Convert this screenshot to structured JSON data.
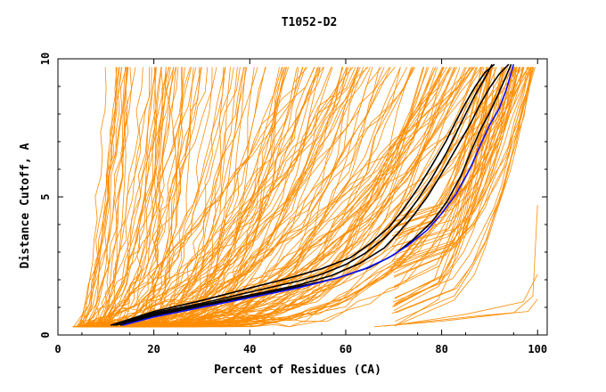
{
  "chart_data": {
    "type": "line",
    "title": "T1052-D2",
    "xlabel": "Percent of Residues (CA)",
    "ylabel": "Distance Cutoff, A",
    "xlim": [
      0,
      102
    ],
    "ylim": [
      0,
      10
    ],
    "x_ticks": [
      0,
      20,
      40,
      60,
      80,
      100
    ],
    "y_ticks": [
      0,
      5,
      10
    ],
    "grid": false,
    "legend": "none",
    "colors": {
      "background_models": "#ff8c00",
      "highlight_models": "#000000",
      "reference_model": "#1010ff"
    },
    "series": [
      {
        "style": "highlight",
        "points": [
          [
            11.5,
            0.35
          ],
          [
            20,
            0.8
          ],
          [
            30,
            1.15
          ],
          [
            40,
            1.55
          ],
          [
            50,
            1.95
          ],
          [
            55,
            2.2
          ],
          [
            60,
            2.55
          ],
          [
            64,
            2.95
          ],
          [
            68,
            3.5
          ],
          [
            72,
            4.2
          ],
          [
            75,
            4.9
          ],
          [
            78,
            5.7
          ],
          [
            81,
            6.6
          ],
          [
            83,
            7.3
          ],
          [
            85,
            8
          ],
          [
            87,
            8.7
          ],
          [
            89,
            9.3
          ],
          [
            90.5,
            9.8
          ]
        ]
      },
      {
        "style": "highlight",
        "points": [
          [
            11,
            0.35
          ],
          [
            20,
            0.85
          ],
          [
            30,
            1.25
          ],
          [
            40,
            1.7
          ],
          [
            48,
            2.05
          ],
          [
            55,
            2.4
          ],
          [
            61,
            2.8
          ],
          [
            65,
            3.3
          ],
          [
            69,
            3.9
          ],
          [
            72,
            4.55
          ],
          [
            75,
            5.3
          ],
          [
            78,
            6.15
          ],
          [
            81,
            7.05
          ],
          [
            83,
            7.75
          ],
          [
            85,
            8.4
          ],
          [
            87,
            9
          ],
          [
            89,
            9.5
          ],
          [
            91,
            9.8
          ]
        ]
      },
      {
        "style": "highlight",
        "points": [
          [
            12,
            0.35
          ],
          [
            20,
            0.75
          ],
          [
            30,
            1.1
          ],
          [
            40,
            1.45
          ],
          [
            50,
            1.8
          ],
          [
            57,
            2.15
          ],
          [
            63,
            2.6
          ],
          [
            68,
            3.15
          ],
          [
            71,
            3.7
          ],
          [
            74,
            4.3
          ],
          [
            77,
            5
          ],
          [
            80,
            5.85
          ],
          [
            83,
            6.75
          ],
          [
            86,
            7.65
          ],
          [
            88,
            8.35
          ],
          [
            90,
            8.95
          ],
          [
            92,
            9.45
          ],
          [
            94,
            9.8
          ]
        ]
      },
      {
        "style": "highlight",
        "points": [
          [
            13,
            0.35
          ],
          [
            20,
            0.7
          ],
          [
            30,
            1.05
          ],
          [
            40,
            1.4
          ],
          [
            50,
            1.75
          ],
          [
            58,
            2.05
          ],
          [
            65,
            2.45
          ],
          [
            70,
            2.9
          ],
          [
            74,
            3.45
          ],
          [
            78,
            4.1
          ],
          [
            81,
            4.8
          ],
          [
            84,
            5.75
          ],
          [
            86,
            6.6
          ],
          [
            88,
            7.4
          ],
          [
            90,
            8.05
          ],
          [
            91.5,
            8.6
          ],
          [
            93,
            9.2
          ],
          [
            94.5,
            9.8
          ]
        ]
      },
      {
        "style": "reference",
        "points": [
          [
            13.5,
            0.35
          ],
          [
            20,
            0.65
          ],
          [
            30,
            1.0
          ],
          [
            40,
            1.35
          ],
          [
            50,
            1.7
          ],
          [
            58,
            2.05
          ],
          [
            64,
            2.4
          ],
          [
            69,
            2.8
          ],
          [
            73,
            3.25
          ],
          [
            77,
            3.8
          ],
          [
            80,
            4.4
          ],
          [
            83,
            5.1
          ],
          [
            86,
            6.05
          ],
          [
            88,
            6.85
          ],
          [
            90,
            7.6
          ],
          [
            92,
            8.2
          ],
          [
            93.5,
            8.9
          ],
          [
            95,
            9.8
          ]
        ]
      }
    ]
  }
}
